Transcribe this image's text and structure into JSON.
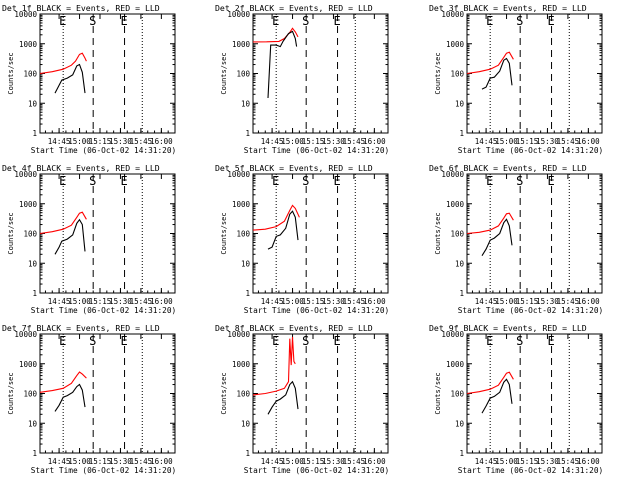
{
  "chart_data": [
    {
      "type": "line",
      "title": "Det 1f BLACK = Events, RED = LLD",
      "xlabel": "Start Time (06-Oct-02 14:31:20)",
      "ylabel": "Counts/sec",
      "x_ticks": [
        "14:45",
        "15:00",
        "15:15",
        "15:30",
        "15:45",
        "16:00"
      ],
      "y_ticks": [
        "1",
        "10",
        "100",
        "1000",
        "10000"
      ],
      "ylim": [
        1,
        10000
      ],
      "y_scale": "log",
      "markers": [
        "E",
        "S",
        "E"
      ],
      "series": [
        {
          "color": "#ff0000",
          "points": [
            [
              "14:31",
              100
            ],
            [
              "14:40",
              115
            ],
            [
              "14:48",
              140
            ],
            [
              "14:54",
              190
            ],
            [
              "14:57",
              260
            ],
            [
              "15:00",
              440
            ],
            [
              "15:02",
              480
            ],
            [
              "15:04",
              330
            ],
            [
              "15:05",
              260
            ]
          ]
        },
        {
          "color": "#000000",
          "points": [
            [
              "14:42",
              22
            ],
            [
              "14:45",
              40
            ],
            [
              "14:47",
              60
            ],
            [
              "14:51",
              70
            ],
            [
              "14:55",
              90
            ],
            [
              "14:58",
              180
            ],
            [
              "15:00",
              200
            ],
            [
              "15:02",
              110
            ],
            [
              "15:04",
              22
            ]
          ]
        }
      ]
    },
    {
      "type": "line",
      "title": "Det 2f BLACK = Events, RED = LLD",
      "xlabel": "Start Time (06-Oct-02 14:31:20)",
      "ylabel": "Counts/sec",
      "x_ticks": [
        "14:45",
        "15:00",
        "15:15",
        "15:30",
        "15:45",
        "16:00"
      ],
      "y_ticks": [
        "1",
        "10",
        "100",
        "1000",
        "10000"
      ],
      "ylim": [
        1,
        10000
      ],
      "y_scale": "log",
      "markers": [
        "E",
        "S",
        "E"
      ],
      "series": [
        {
          "color": "#ff0000",
          "points": [
            [
              "14:31",
              1150
            ],
            [
              "14:41",
              1160
            ],
            [
              "14:50",
              1200
            ],
            [
              "14:54",
              1500
            ],
            [
              "14:58",
              2400
            ],
            [
              "15:00",
              3300
            ],
            [
              "15:02",
              2500
            ],
            [
              "15:04",
              1700
            ]
          ]
        },
        {
          "color": "#000000",
          "points": [
            [
              "14:42",
              15
            ],
            [
              "14:44",
              900
            ],
            [
              "14:48",
              900
            ],
            [
              "14:51",
              800
            ],
            [
              "14:53",
              1200
            ],
            [
              "14:57",
              2200
            ],
            [
              "15:00",
              2600
            ],
            [
              "15:02",
              1500
            ],
            [
              "15:03",
              800
            ]
          ]
        }
      ]
    },
    {
      "type": "line",
      "title": "Det 3f BLACK = Events, RED = LLD",
      "xlabel": "Start Time (06-Oct-02 14:31:20)",
      "ylabel": "Counts/sec",
      "x_ticks": [
        "14:45",
        "15:00",
        "15:15",
        "15:30",
        "15:45",
        "16:00"
      ],
      "y_ticks": [
        "1",
        "10",
        "100",
        "1000",
        "10000"
      ],
      "ylim": [
        1,
        10000
      ],
      "y_scale": "log",
      "markers": [
        "E",
        "S",
        "E"
      ],
      "series": [
        {
          "color": "#ff0000",
          "points": [
            [
              "14:31",
              100
            ],
            [
              "14:40",
              115
            ],
            [
              "14:48",
              140
            ],
            [
              "14:54",
              190
            ],
            [
              "14:58",
              350
            ],
            [
              "15:00",
              480
            ],
            [
              "15:02",
              520
            ],
            [
              "15:05",
              300
            ]
          ]
        },
        {
          "color": "#000000",
          "points": [
            [
              "14:42",
              30
            ],
            [
              "14:45",
              35
            ],
            [
              "14:48",
              70
            ],
            [
              "14:51",
              75
            ],
            [
              "14:55",
              120
            ],
            [
              "14:58",
              280
            ],
            [
              "15:00",
              320
            ],
            [
              "15:02",
              220
            ],
            [
              "15:04",
              40
            ]
          ]
        }
      ]
    },
    {
      "type": "line",
      "title": "Det 4f BLACK = Events, RED = LLD",
      "xlabel": "Start Time (06-Oct-02 14:31:20)",
      "ylabel": "Counts/sec",
      "x_ticks": [
        "14:45",
        "15:00",
        "15:15",
        "15:30",
        "15:45",
        "16:00"
      ],
      "y_ticks": [
        "1",
        "10",
        "100",
        "1000",
        "10000"
      ],
      "ylim": [
        1,
        10000
      ],
      "y_scale": "log",
      "markers": [
        "E",
        "S",
        "E"
      ],
      "series": [
        {
          "color": "#ff0000",
          "points": [
            [
              "14:31",
              100
            ],
            [
              "14:40",
              115
            ],
            [
              "14:48",
              140
            ],
            [
              "14:54",
              190
            ],
            [
              "14:58",
              350
            ],
            [
              "15:00",
              480
            ],
            [
              "15:02",
              520
            ],
            [
              "15:05",
              300
            ]
          ]
        },
        {
          "color": "#000000",
          "points": [
            [
              "14:42",
              20
            ],
            [
              "14:45",
              35
            ],
            [
              "14:47",
              55
            ],
            [
              "14:51",
              65
            ],
            [
              "14:55",
              90
            ],
            [
              "14:58",
              220
            ],
            [
              "15:00",
              290
            ],
            [
              "15:02",
              200
            ],
            [
              "15:04",
              25
            ]
          ]
        }
      ]
    },
    {
      "type": "line",
      "title": "Det 5f BLACK = Events, RED = LLD",
      "xlabel": "Start Time (06-Oct-02 14:31:20)",
      "ylabel": "Counts/sec",
      "x_ticks": [
        "14:45",
        "15:00",
        "15:15",
        "15:30",
        "15:45",
        "16:00"
      ],
      "y_ticks": [
        "1",
        "10",
        "100",
        "1000",
        "10000"
      ],
      "ylim": [
        1,
        10000
      ],
      "y_scale": "log",
      "markers": [
        "E",
        "S",
        "E"
      ],
      "series": [
        {
          "color": "#ff0000",
          "points": [
            [
              "14:31",
              130
            ],
            [
              "14:40",
              140
            ],
            [
              "14:48",
              170
            ],
            [
              "14:54",
              260
            ],
            [
              "14:58",
              600
            ],
            [
              "15:00",
              880
            ],
            [
              "15:02",
              700
            ],
            [
              "15:05",
              350
            ]
          ]
        },
        {
          "color": "#000000",
          "points": [
            [
              "14:42",
              30
            ],
            [
              "14:45",
              35
            ],
            [
              "14:48",
              80
            ],
            [
              "14:51",
              90
            ],
            [
              "14:55",
              150
            ],
            [
              "14:58",
              450
            ],
            [
              "15:00",
              560
            ],
            [
              "15:02",
              350
            ],
            [
              "15:04",
              60
            ]
          ]
        }
      ]
    },
    {
      "type": "line",
      "title": "Det 6f BLACK = Events, RED = LLD",
      "xlabel": "Start Time (06-Oct-02 14:31:20)",
      "ylabel": "Counts/sec",
      "x_ticks": [
        "14:45",
        "15:00",
        "15:15",
        "15:30",
        "15:45",
        "16:00"
      ],
      "y_ticks": [
        "1",
        "10",
        "100",
        "1000",
        "10000"
      ],
      "ylim": [
        1,
        10000
      ],
      "y_scale": "log",
      "markers": [
        "E",
        "S",
        "E"
      ],
      "series": [
        {
          "color": "#ff0000",
          "points": [
            [
              "14:31",
              100
            ],
            [
              "14:40",
              110
            ],
            [
              "14:48",
              130
            ],
            [
              "14:54",
              180
            ],
            [
              "14:58",
              330
            ],
            [
              "15:00",
              460
            ],
            [
              "15:02",
              480
            ],
            [
              "15:05",
              280
            ]
          ]
        },
        {
          "color": "#000000",
          "points": [
            [
              "14:42",
              18
            ],
            [
              "14:45",
              30
            ],
            [
              "14:48",
              60
            ],
            [
              "14:51",
              70
            ],
            [
              "14:55",
              100
            ],
            [
              "14:58",
              230
            ],
            [
              "15:00",
              300
            ],
            [
              "15:02",
              180
            ],
            [
              "15:04",
              40
            ]
          ]
        }
      ]
    },
    {
      "type": "line",
      "title": "Det 7f BLACK = Events, RED = LLD",
      "xlabel": "Start Time (06-Oct-02 14:31:20)",
      "ylabel": "Counts/sec",
      "x_ticks": [
        "14:45",
        "15:00",
        "15:15",
        "15:30",
        "15:45",
        "16:00"
      ],
      "y_ticks": [
        "1",
        "10",
        "100",
        "1000",
        "10000"
      ],
      "ylim": [
        1,
        10000
      ],
      "y_scale": "log",
      "markers": [
        "E",
        "S",
        "E"
      ],
      "series": [
        {
          "color": "#ff0000",
          "points": [
            [
              "14:31",
              110
            ],
            [
              "14:40",
              125
            ],
            [
              "14:48",
              150
            ],
            [
              "14:54",
              220
            ],
            [
              "14:58",
              400
            ],
            [
              "15:00",
              530
            ],
            [
              "15:02",
              450
            ],
            [
              "15:05",
              330
            ]
          ]
        },
        {
          "color": "#000000",
          "points": [
            [
              "14:42",
              25
            ],
            [
              "14:45",
              40
            ],
            [
              "14:48",
              75
            ],
            [
              "14:51",
              85
            ],
            [
              "14:55",
              110
            ],
            [
              "14:58",
              170
            ],
            [
              "15:00",
              200
            ],
            [
              "15:02",
              130
            ],
            [
              "15:04",
              35
            ]
          ]
        }
      ]
    },
    {
      "type": "line",
      "title": "Det 8f BLACK = Events, RED = LLD",
      "xlabel": "Start Time (06-Oct-02 14:31:20)",
      "ylabel": "Counts/sec",
      "x_ticks": [
        "14:45",
        "15:00",
        "15:15",
        "15:30",
        "15:45",
        "16:00"
      ],
      "y_ticks": [
        "1",
        "10",
        "100",
        "1000",
        "10000"
      ],
      "ylim": [
        1,
        10000
      ],
      "y_scale": "log",
      "markers": [
        "E",
        "S",
        "E"
      ],
      "series": [
        {
          "color": "#ff0000",
          "points": [
            [
              "14:31",
              90
            ],
            [
              "14:40",
              100
            ],
            [
              "14:48",
              120
            ],
            [
              "14:54",
              150
            ],
            [
              "14:57",
              250
            ],
            [
              "14:58",
              7000
            ],
            [
              "14:59",
              900
            ],
            [
              "15:00",
              8000
            ],
            [
              "15:01",
              1200
            ],
            [
              "15:02",
              1000
            ]
          ]
        },
        {
          "color": "#000000",
          "points": [
            [
              "14:42",
              20
            ],
            [
              "14:45",
              35
            ],
            [
              "14:48",
              55
            ],
            [
              "14:51",
              65
            ],
            [
              "14:55",
              90
            ],
            [
              "14:58",
              200
            ],
            [
              "15:00",
              250
            ],
            [
              "15:02",
              150
            ],
            [
              "15:04",
              30
            ]
          ]
        }
      ]
    },
    {
      "type": "line",
      "title": "Det 9f BLACK = Events, RED = LLD",
      "xlabel": "Start Time (06-Oct-02 14:31:20)",
      "ylabel": "Counts/sec",
      "x_ticks": [
        "14:45",
        "15:00",
        "15:15",
        "15:30",
        "15:45",
        "16:00"
      ],
      "y_ticks": [
        "1",
        "10",
        "100",
        "1000",
        "10000"
      ],
      "ylim": [
        1,
        10000
      ],
      "y_scale": "log",
      "markers": [
        "E",
        "S",
        "E"
      ],
      "series": [
        {
          "color": "#ff0000",
          "points": [
            [
              "14:31",
              100
            ],
            [
              "14:40",
              115
            ],
            [
              "14:48",
              140
            ],
            [
              "14:54",
              190
            ],
            [
              "14:58",
              350
            ],
            [
              "15:00",
              480
            ],
            [
              "15:02",
              520
            ],
            [
              "15:05",
              300
            ]
          ]
        },
        {
          "color": "#000000",
          "points": [
            [
              "14:42",
              22
            ],
            [
              "14:45",
              38
            ],
            [
              "14:48",
              70
            ],
            [
              "14:51",
              80
            ],
            [
              "14:55",
              110
            ],
            [
              "14:58",
              240
            ],
            [
              "15:00",
              300
            ],
            [
              "15:02",
              200
            ],
            [
              "15:04",
              45
            ]
          ]
        }
      ]
    }
  ]
}
